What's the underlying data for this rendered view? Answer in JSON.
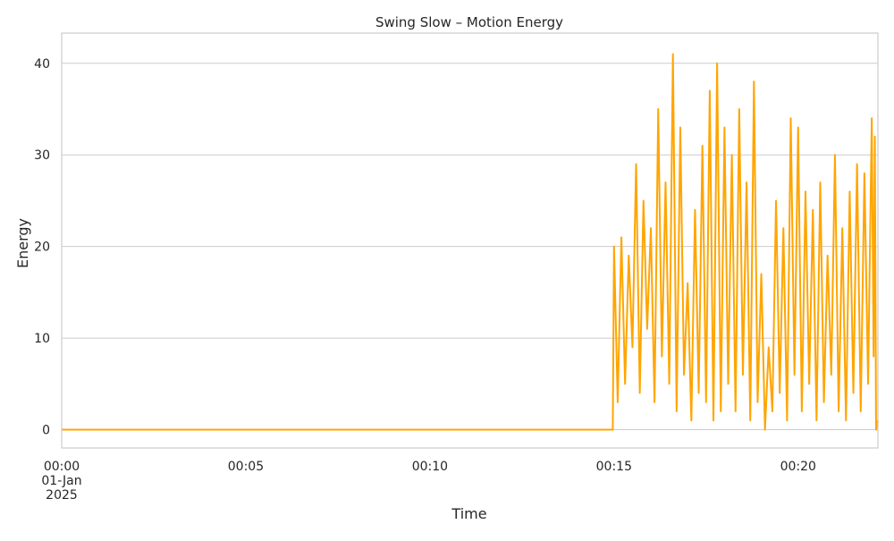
{
  "chart_data": {
    "type": "line",
    "title": "Swing Slow – Motion Energy",
    "xlabel": "Time",
    "ylabel": "Energy",
    "xlim": [
      "00:00",
      "00:22:10"
    ],
    "ylim": [
      -2,
      43.3
    ],
    "grid": "horizontal",
    "x_ticks": [
      {
        "t": "00:00",
        "label": "00:00",
        "sublabel": [
          "01-Jan",
          "2025"
        ]
      },
      {
        "t": "00:05",
        "label": "00:05"
      },
      {
        "t": "00:10",
        "label": "00:10"
      },
      {
        "t": "00:15",
        "label": "00:15"
      },
      {
        "t": "00:20",
        "label": "00:20"
      }
    ],
    "y_ticks": [
      0,
      10,
      20,
      30,
      40
    ],
    "series": [
      {
        "color": "#ffa500",
        "points": [
          [
            "00:00",
            0
          ],
          [
            "00:14:58",
            0
          ],
          [
            "00:15:00",
            20
          ],
          [
            "00:15:06",
            3
          ],
          [
            "00:15:12",
            21
          ],
          [
            "00:15:18",
            5
          ],
          [
            "00:15:24",
            19
          ],
          [
            "00:15:30",
            9
          ],
          [
            "00:15:36",
            29
          ],
          [
            "00:15:42",
            4
          ],
          [
            "00:15:48",
            25
          ],
          [
            "00:15:54",
            11
          ],
          [
            "00:16:00",
            22
          ],
          [
            "00:16:06",
            3
          ],
          [
            "00:16:12",
            35
          ],
          [
            "00:16:18",
            8
          ],
          [
            "00:16:24",
            27
          ],
          [
            "00:16:30",
            5
          ],
          [
            "00:16:36",
            41
          ],
          [
            "00:16:42",
            2
          ],
          [
            "00:16:48",
            33
          ],
          [
            "00:16:54",
            6
          ],
          [
            "00:17:00",
            16
          ],
          [
            "00:17:06",
            1
          ],
          [
            "00:17:12",
            24
          ],
          [
            "00:17:18",
            4
          ],
          [
            "00:17:24",
            31
          ],
          [
            "00:17:30",
            3
          ],
          [
            "00:17:36",
            37
          ],
          [
            "00:17:42",
            1
          ],
          [
            "00:17:48",
            40
          ],
          [
            "00:17:54",
            2
          ],
          [
            "00:18:00",
            33
          ],
          [
            "00:18:06",
            5
          ],
          [
            "00:18:12",
            30
          ],
          [
            "00:18:18",
            2
          ],
          [
            "00:18:24",
            35
          ],
          [
            "00:18:30",
            6
          ],
          [
            "00:18:36",
            27
          ],
          [
            "00:18:42",
            1
          ],
          [
            "00:18:48",
            38
          ],
          [
            "00:18:54",
            3
          ],
          [
            "00:19:00",
            17
          ],
          [
            "00:19:06",
            0
          ],
          [
            "00:19:12",
            9
          ],
          [
            "00:19:18",
            2
          ],
          [
            "00:19:24",
            25
          ],
          [
            "00:19:30",
            4
          ],
          [
            "00:19:36",
            22
          ],
          [
            "00:19:42",
            1
          ],
          [
            "00:19:48",
            34
          ],
          [
            "00:19:54",
            6
          ],
          [
            "00:20:00",
            33
          ],
          [
            "00:20:06",
            2
          ],
          [
            "00:20:12",
            26
          ],
          [
            "00:20:18",
            5
          ],
          [
            "00:20:24",
            24
          ],
          [
            "00:20:30",
            1
          ],
          [
            "00:20:36",
            27
          ],
          [
            "00:20:42",
            3
          ],
          [
            "00:20:48",
            19
          ],
          [
            "00:20:54",
            6
          ],
          [
            "00:21:00",
            30
          ],
          [
            "00:21:06",
            2
          ],
          [
            "00:21:12",
            22
          ],
          [
            "00:21:18",
            1
          ],
          [
            "00:21:24",
            26
          ],
          [
            "00:21:30",
            4
          ],
          [
            "00:21:36",
            29
          ],
          [
            "00:21:42",
            2
          ],
          [
            "00:21:48",
            28
          ],
          [
            "00:21:54",
            5
          ],
          [
            "00:22:00",
            34
          ],
          [
            "00:22:03",
            8
          ],
          [
            "00:22:05",
            32
          ],
          [
            "00:22:07",
            0
          ],
          [
            "00:22:10",
            1
          ]
        ]
      }
    ]
  }
}
